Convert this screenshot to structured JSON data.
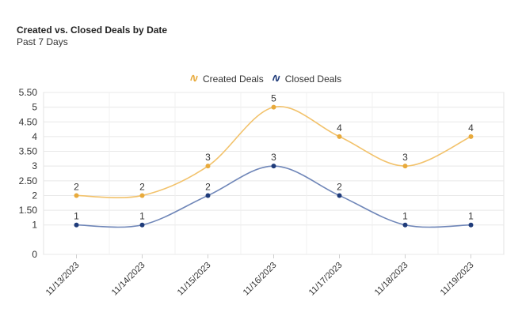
{
  "header": {
    "title": "Created vs. Closed Deals by Date",
    "subtitle": "Past 7 Days"
  },
  "chart_data": {
    "type": "line",
    "title": "Created vs. Closed Deals by Date",
    "subtitle": "Past 7 Days",
    "xlabel": "",
    "ylabel": "",
    "categories": [
      "11/13/2023",
      "11/14/2023",
      "11/15/2023",
      "11/16/2023",
      "11/17/2023",
      "11/18/2023",
      "11/19/2023"
    ],
    "y_ticks": [
      "0",
      "1",
      "1.50",
      "2",
      "2.50",
      "3",
      "3.50",
      "4",
      "4.50",
      "5",
      "5.50"
    ],
    "ylim": [
      0,
      5.5
    ],
    "grid": true,
    "legend_position": "top-center",
    "smooth": true,
    "series": [
      {
        "name": "Created Deals",
        "color": "#f2c26b",
        "marker_color": "#e8aa3c",
        "values": [
          2,
          2,
          3,
          5,
          4,
          3,
          4
        ],
        "labels": [
          "2",
          "2",
          "3",
          "5",
          "4",
          "3",
          "4"
        ]
      },
      {
        "name": "Closed Deals",
        "color": "#6f86b8",
        "marker_color": "#1f3b7a",
        "values": [
          1,
          1,
          2,
          3,
          2,
          1,
          1
        ],
        "labels": [
          "1",
          "1",
          "2",
          "3",
          "2",
          "1",
          "1"
        ]
      }
    ],
    "legend_icon": "curve-icon"
  }
}
